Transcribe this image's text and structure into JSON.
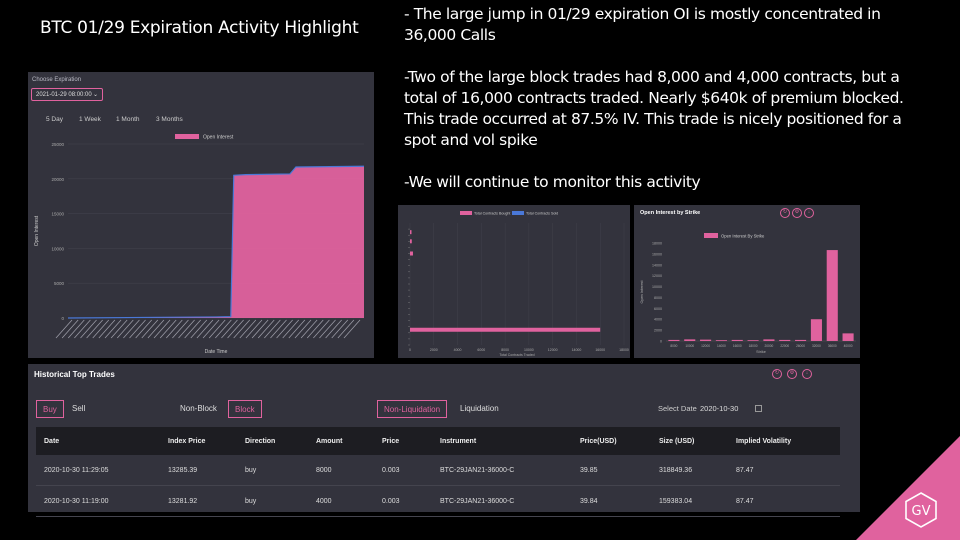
{
  "slide": {
    "title": "BTC 01/29 Expiration Activity Highlight",
    "bullets": [
      "- The large jump in 01/29 expiration OI is mostly concentrated in 36,000 Calls",
      "-Two of the large block trades had 8,000 and 4,000 contracts, but a total of 16,000 contracts traded. Nearly $640k of premium blocked. This trade occurred at 87.5% IV. This trade is nicely positioned for a spot and vol spike",
      "-We will continue to monitor this activity"
    ],
    "logo_text": "GV"
  },
  "oi_panel": {
    "choose_label": "Choose Expiration",
    "selected_expiration": "2021-01-29 08:00:00",
    "ranges": [
      "5 Day",
      "1 Week",
      "1 Month",
      "3 Months"
    ]
  },
  "chart_data": [
    {
      "type": "area",
      "title": "",
      "legend": [
        "Open Interest"
      ],
      "xlabel": "Date Time",
      "ylabel": "Open Interest",
      "ylim": [
        0,
        25000
      ],
      "y_ticks": [
        0,
        5000,
        10000,
        15000,
        20000,
        25000
      ],
      "series": [
        {
          "name": "Open Interest",
          "color": "#e0629e",
          "points": [
            [
              0,
              0
            ],
            [
              0.25,
              80
            ],
            [
              0.5,
              150
            ],
            [
              0.55,
              200
            ],
            [
              0.56,
              20500
            ],
            [
              0.6,
              20600
            ],
            [
              0.75,
              20700
            ],
            [
              0.77,
              21700
            ],
            [
              1.0,
              21800
            ]
          ]
        }
      ]
    },
    {
      "type": "bar",
      "orientation": "horizontal",
      "legend": [
        "Total Contracts Bought",
        "Total Contracts Sold"
      ],
      "xlabel": "Total Contracts Traded",
      "xlim": [
        0,
        18000
      ],
      "x_ticks": [
        0,
        2000,
        4000,
        6000,
        8000,
        10000,
        12000,
        14000,
        16000,
        18000
      ],
      "bars": [
        {
          "row": 5,
          "bought": 16000
        },
        {
          "row": 30,
          "bought": 250
        },
        {
          "row": 34,
          "bought": 150
        },
        {
          "row": 37,
          "bought": 100
        }
      ],
      "colors": {
        "bought": "#e0629e",
        "sold": "#4a78d8"
      }
    },
    {
      "type": "bar",
      "title": "Open Interest by Strike",
      "legend": [
        "Open Interest By Strike"
      ],
      "xlabel": "Strike",
      "ylabel": "Open Interest",
      "ylim": [
        0,
        18000
      ],
      "y_ticks": [
        0,
        2000,
        4000,
        6000,
        8000,
        10000,
        12000,
        14000,
        16000,
        18000
      ],
      "categories": [
        "8000",
        "10000",
        "12000",
        "14000",
        "16000",
        "18000",
        "20000",
        "22000",
        "26000",
        "32000",
        "36000",
        "40000"
      ],
      "values": [
        200,
        300,
        250,
        150,
        200,
        150,
        300,
        200,
        200,
        4000,
        16700,
        1400
      ],
      "color": "#e0629e"
    }
  ],
  "trades": {
    "title": "Historical Top Trades",
    "side_tabs": [
      "Buy",
      "Sell"
    ],
    "block_tabs": [
      "Non-Block",
      "Block"
    ],
    "liq_tabs": [
      "Non-Liquidation",
      "Liquidation"
    ],
    "select_date_label": "Select Date",
    "selected_date": "2020-10-30",
    "columns": [
      "Date",
      "Index Price",
      "Direction",
      "Amount",
      "Price",
      "Instrument",
      "Price(USD)",
      "Size (USD)",
      "Implied Volatility"
    ],
    "rows": [
      [
        "2020-10-30 11:29:05",
        "13285.39",
        "buy",
        "8000",
        "0.003",
        "BTC-29JAN21-36000-C",
        "39.85",
        "318849.36",
        "87.47"
      ],
      [
        "2020-10-30 11:19:00",
        "13281.92",
        "buy",
        "4000",
        "0.003",
        "BTC-29JAN21-36000-C",
        "39.84",
        "159383.04",
        "87.47"
      ]
    ]
  }
}
